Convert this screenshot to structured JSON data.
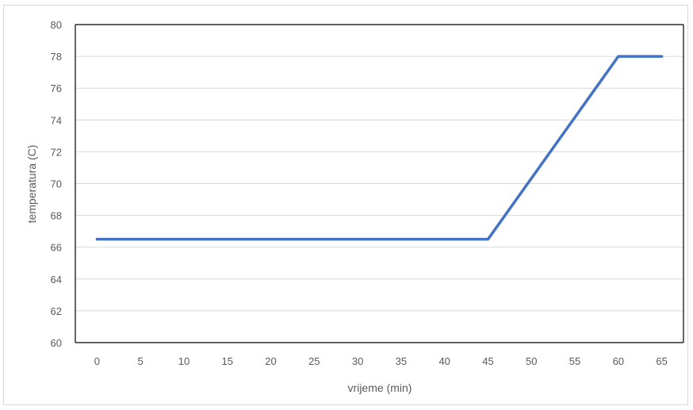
{
  "chart_data": {
    "type": "line",
    "title": "",
    "xlabel": "vrijeme (min)",
    "ylabel": "temperatura (C)",
    "categories": [
      "0",
      "5",
      "10",
      "15",
      "20",
      "25",
      "30",
      "35",
      "40",
      "45",
      "50",
      "55",
      "60",
      "65"
    ],
    "series": [
      {
        "color": "#4472c4",
        "x": [
          0,
          45,
          60,
          65
        ],
        "values": [
          66.5,
          66.5,
          78,
          78
        ]
      }
    ],
    "ylim": [
      60,
      80
    ],
    "yticks": [
      "60",
      "62",
      "64",
      "66",
      "68",
      "70",
      "72",
      "74",
      "76",
      "78",
      "80"
    ],
    "grid": true,
    "legend": "none"
  }
}
